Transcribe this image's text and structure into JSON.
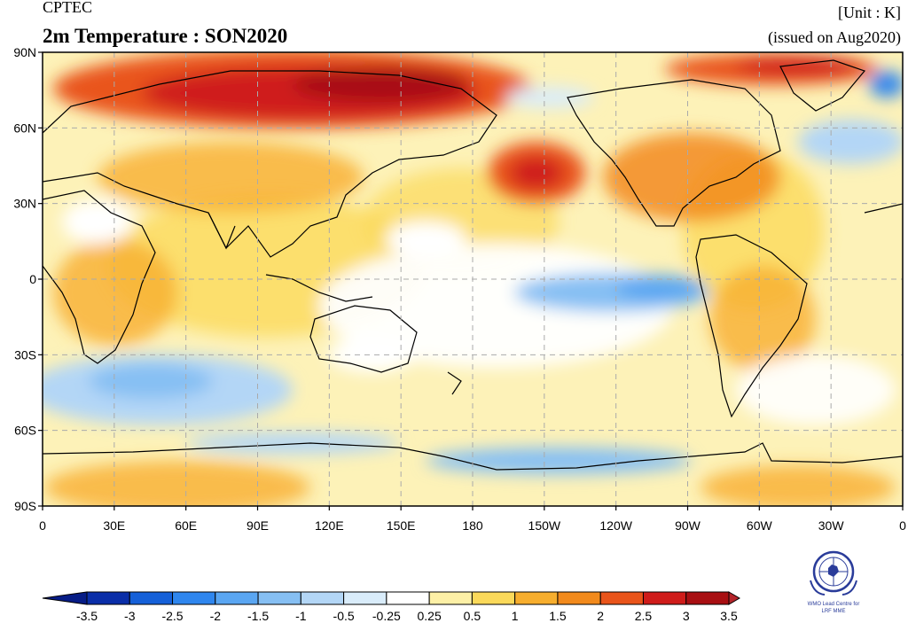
{
  "header": {
    "producer": "CPTEC",
    "title": "2m Temperature : SON2020",
    "unit": "[Unit : K]",
    "issued": "(issued on Aug2020)"
  },
  "map": {
    "lat_labels": [
      "90N",
      "60N",
      "30N",
      "0",
      "30S",
      "60S",
      "90S"
    ],
    "lon_labels": [
      "0",
      "30E",
      "60E",
      "90E",
      "120E",
      "150E",
      "180",
      "150W",
      "120W",
      "90W",
      "60W",
      "30W",
      "0"
    ],
    "lon_range": [
      0,
      360
    ],
    "lat_range": [
      -90,
      90
    ],
    "grid": "dashed",
    "projection": "equirectangular, centered on 180"
  },
  "colorbar": {
    "labels": [
      "-3.5",
      "-3",
      "-2.5",
      "-2",
      "-1.5",
      "-1",
      "-0.5",
      "-0.25",
      "0.25",
      "0.5",
      "1",
      "1.5",
      "2",
      "2.5",
      "3",
      "3.5"
    ],
    "colors": [
      "#0a2ea8",
      "#1560d8",
      "#2f86ee",
      "#5aa6f2",
      "#86bff3",
      "#b3d6f6",
      "#d9ecfa",
      "#ffffff",
      "#fdf0a6",
      "#fbd95a",
      "#f7ae2e",
      "#f28a1c",
      "#e9541a",
      "#cf1c1a",
      "#a80f12"
    ],
    "under_color": "#061c86",
    "over_color": "#b4242a"
  },
  "logo": {
    "name": "wmo-emblem",
    "line1": "WMO Lead Centre for",
    "line2": "LRF MME"
  }
}
